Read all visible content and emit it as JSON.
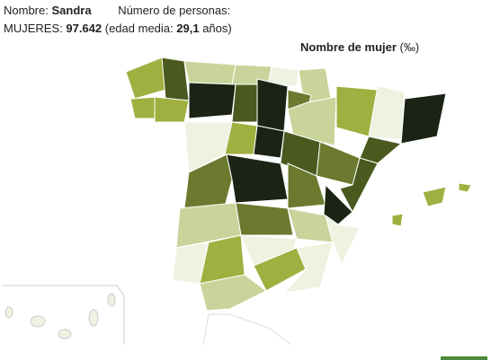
{
  "header": {
    "name_label": "Nombre:",
    "name": "Sandra",
    "count_label": "Número de personas:",
    "women_label": "MUJERES:",
    "women_count": "97.642",
    "age_label": "(edad media:",
    "age": "29,1",
    "age_unit": "años)"
  },
  "map": {
    "title": "Nombre de mujer",
    "unit": "(‰)"
  }
}
